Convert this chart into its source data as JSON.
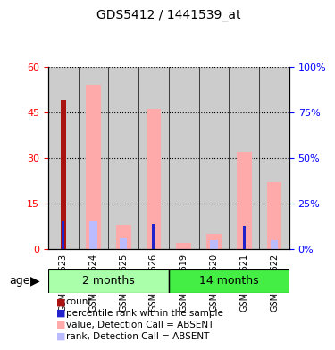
{
  "title": "GDS5412 / 1441539_at",
  "samples": [
    "GSM1330623",
    "GSM1330624",
    "GSM1330625",
    "GSM1330626",
    "GSM1330619",
    "GSM1330620",
    "GSM1330621",
    "GSM1330622"
  ],
  "groups": [
    {
      "label": "2 months",
      "color": "#aaffaa",
      "indices": [
        0,
        1,
        2,
        3
      ]
    },
    {
      "label": "14 months",
      "color": "#44ee44",
      "indices": [
        4,
        5,
        6,
        7
      ]
    }
  ],
  "count_values": [
    49,
    0,
    0,
    0,
    0,
    0,
    0,
    0
  ],
  "count_color": "#aa1111",
  "percentile_rank_values": [
    15,
    0,
    0,
    14,
    0,
    0,
    13,
    0
  ],
  "percentile_rank_color": "#2222cc",
  "value_absent_values": [
    0,
    54,
    8,
    46,
    2,
    5,
    32,
    22
  ],
  "value_absent_color": "#ffaaaa",
  "rank_absent_values": [
    0,
    15,
    6,
    0,
    0,
    5,
    0,
    5
  ],
  "rank_absent_color": "#bbbbff",
  "left_ylim": [
    0,
    60
  ],
  "left_yticks": [
    0,
    15,
    30,
    45,
    60
  ],
  "right_ylim": [
    0,
    100
  ],
  "right_yticks": [
    0,
    25,
    50,
    75,
    100
  ],
  "right_ylabel_suffix": "%",
  "bar_width": 0.5,
  "grid_color": "black",
  "grid_style": "dotted",
  "bg_plot": "#ffffff",
  "bg_sample": "#cccccc",
  "age_label": "age",
  "legend_items": [
    {
      "color": "#aa1111",
      "label": "count"
    },
    {
      "color": "#2222cc",
      "label": "percentile rank within the sample"
    },
    {
      "color": "#ffaaaa",
      "label": "value, Detection Call = ABSENT"
    },
    {
      "color": "#bbbbff",
      "label": "rank, Detection Call = ABSENT"
    }
  ]
}
